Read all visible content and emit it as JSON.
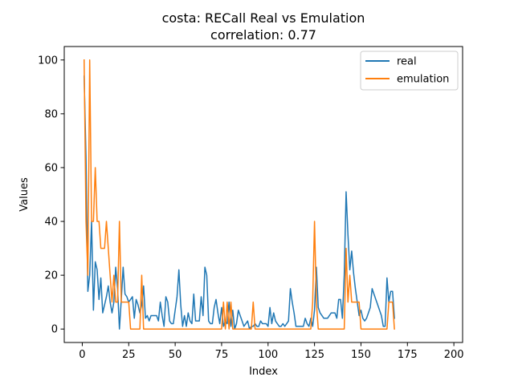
{
  "chart_data": {
    "type": "line",
    "title_line1": "costa: RECall Real vs Emulation",
    "title_line2": "correlation: 0.77",
    "xlabel": "Index",
    "ylabel": "Values",
    "xlim": [
      -9.7,
      204.7
    ],
    "ylim": [
      -5,
      105
    ],
    "xticks": [
      0,
      25,
      50,
      75,
      100,
      125,
      150,
      175,
      200
    ],
    "yticks": [
      0,
      20,
      40,
      60,
      80,
      100
    ],
    "legend_position": "top-right",
    "series": [
      {
        "name": "real",
        "color": "#1f77b4",
        "points": [
          [
            1,
            94
          ],
          [
            2,
            64
          ],
          [
            3,
            14
          ],
          [
            4,
            20
          ],
          [
            5,
            40
          ],
          [
            6,
            7
          ],
          [
            7,
            25
          ],
          [
            8,
            22
          ],
          [
            9,
            11
          ],
          [
            10,
            19
          ],
          [
            11,
            6
          ],
          [
            12,
            9
          ],
          [
            13,
            12
          ],
          [
            14,
            16
          ],
          [
            15,
            10
          ],
          [
            16,
            6
          ],
          [
            17,
            10
          ],
          [
            18,
            23
          ],
          [
            19,
            15
          ],
          [
            20,
            0
          ],
          [
            21,
            11
          ],
          [
            22,
            23
          ],
          [
            23,
            13
          ],
          [
            24,
            12
          ],
          [
            25,
            10
          ],
          [
            26,
            11
          ],
          [
            27,
            12
          ],
          [
            28,
            4
          ],
          [
            29,
            11
          ],
          [
            30,
            9
          ],
          [
            31,
            6
          ],
          [
            32,
            9
          ],
          [
            33,
            16
          ],
          [
            34,
            4
          ],
          [
            35,
            5
          ],
          [
            36,
            3
          ],
          [
            37,
            5
          ],
          [
            38,
            5
          ],
          [
            39,
            5
          ],
          [
            40,
            5
          ],
          [
            41,
            3
          ],
          [
            42,
            10
          ],
          [
            43,
            5
          ],
          [
            44,
            1
          ],
          [
            45,
            12
          ],
          [
            46,
            10
          ],
          [
            47,
            3
          ],
          [
            48,
            2
          ],
          [
            49,
            2
          ],
          [
            50,
            7
          ],
          [
            51,
            12
          ],
          [
            52,
            22
          ],
          [
            53,
            9
          ],
          [
            54,
            1
          ],
          [
            55,
            5
          ],
          [
            56,
            1
          ],
          [
            57,
            6
          ],
          [
            58,
            3
          ],
          [
            59,
            2
          ],
          [
            60,
            13
          ],
          [
            61,
            3
          ],
          [
            62,
            3
          ],
          [
            63,
            3
          ],
          [
            64,
            12
          ],
          [
            65,
            5
          ],
          [
            66,
            23
          ],
          [
            67,
            20
          ],
          [
            68,
            3
          ],
          [
            69,
            2
          ],
          [
            70,
            2
          ],
          [
            71,
            8
          ],
          [
            72,
            11
          ],
          [
            73,
            6
          ],
          [
            74,
            2
          ],
          [
            75,
            8
          ],
          [
            76,
            1
          ],
          [
            77,
            3
          ],
          [
            78,
            2
          ],
          [
            79,
            10
          ],
          [
            80,
            1
          ],
          [
            81,
            7
          ],
          [
            82,
            0
          ],
          [
            83,
            2
          ],
          [
            84,
            7
          ],
          [
            85,
            5
          ],
          [
            86,
            3
          ],
          [
            87,
            1
          ],
          [
            88,
            2
          ],
          [
            89,
            3
          ],
          [
            90,
            0
          ],
          [
            91,
            1
          ],
          [
            92,
            1
          ],
          [
            93,
            2
          ],
          [
            94,
            1
          ],
          [
            95,
            1
          ],
          [
            96,
            3
          ],
          [
            97,
            2
          ],
          [
            98,
            2
          ],
          [
            99,
            2
          ],
          [
            100,
            1
          ],
          [
            101,
            8
          ],
          [
            102,
            2
          ],
          [
            103,
            6
          ],
          [
            104,
            3
          ],
          [
            105,
            2
          ],
          [
            106,
            1
          ],
          [
            107,
            1
          ],
          [
            108,
            2
          ],
          [
            109,
            1
          ],
          [
            110,
            2
          ],
          [
            111,
            3
          ],
          [
            112,
            15
          ],
          [
            113,
            10
          ],
          [
            114,
            6
          ],
          [
            115,
            1
          ],
          [
            116,
            1
          ],
          [
            117,
            1
          ],
          [
            118,
            1
          ],
          [
            119,
            1
          ],
          [
            120,
            4
          ],
          [
            121,
            2
          ],
          [
            122,
            1
          ],
          [
            123,
            4
          ],
          [
            124,
            1
          ],
          [
            125,
            7
          ],
          [
            126,
            23
          ],
          [
            127,
            8
          ],
          [
            128,
            6
          ],
          [
            129,
            5
          ],
          [
            130,
            4
          ],
          [
            131,
            4
          ],
          [
            132,
            4
          ],
          [
            133,
            5
          ],
          [
            134,
            6
          ],
          [
            135,
            6
          ],
          [
            136,
            6
          ],
          [
            137,
            4
          ],
          [
            138,
            11
          ],
          [
            139,
            11
          ],
          [
            140,
            4
          ],
          [
            141,
            20
          ],
          [
            142,
            51
          ],
          [
            143,
            35
          ],
          [
            144,
            22
          ],
          [
            145,
            29
          ],
          [
            146,
            21
          ],
          [
            147,
            15
          ],
          [
            148,
            10
          ],
          [
            149,
            5
          ],
          [
            150,
            7
          ],
          [
            151,
            4
          ],
          [
            152,
            3
          ],
          [
            153,
            4
          ],
          [
            154,
            6
          ],
          [
            155,
            8
          ],
          [
            156,
            15
          ],
          [
            157,
            13
          ],
          [
            158,
            11
          ],
          [
            159,
            9
          ],
          [
            160,
            7
          ],
          [
            161,
            5
          ],
          [
            162,
            1
          ],
          [
            163,
            1
          ],
          [
            164,
            19
          ],
          [
            165,
            10
          ],
          [
            166,
            14
          ],
          [
            167,
            14
          ],
          [
            168,
            4
          ]
        ]
      },
      {
        "name": "emulation",
        "color": "#ff7f0e",
        "points": [
          [
            1,
            100
          ],
          [
            2,
            40
          ],
          [
            3,
            20
          ],
          [
            4,
            100
          ],
          [
            5,
            40
          ],
          [
            6,
            40
          ],
          [
            7,
            60
          ],
          [
            8,
            40
          ],
          [
            9,
            40
          ],
          [
            10,
            30
          ],
          [
            11,
            30
          ],
          [
            12,
            30
          ],
          [
            13,
            40
          ],
          [
            14,
            30
          ],
          [
            15,
            20
          ],
          [
            16,
            10
          ],
          [
            17,
            20
          ],
          [
            18,
            10
          ],
          [
            19,
            10
          ],
          [
            20,
            40
          ],
          [
            21,
            10
          ],
          [
            22,
            10
          ],
          [
            23,
            10
          ],
          [
            24,
            10
          ],
          [
            25,
            10
          ],
          [
            26,
            0
          ],
          [
            27,
            0
          ],
          [
            28,
            0
          ],
          [
            29,
            0
          ],
          [
            30,
            0
          ],
          [
            31,
            0
          ],
          [
            32,
            20
          ],
          [
            33,
            0
          ],
          [
            34,
            0
          ],
          [
            35,
            0
          ],
          [
            36,
            0
          ],
          [
            37,
            0
          ],
          [
            38,
            0
          ],
          [
            39,
            0
          ],
          [
            40,
            0
          ],
          [
            41,
            0
          ],
          [
            42,
            0
          ],
          [
            43,
            0
          ],
          [
            44,
            0
          ],
          [
            45,
            0
          ],
          [
            46,
            0
          ],
          [
            47,
            0
          ],
          [
            48,
            0
          ],
          [
            49,
            0
          ],
          [
            50,
            0
          ],
          [
            51,
            0
          ],
          [
            52,
            0
          ],
          [
            53,
            0
          ],
          [
            54,
            0
          ],
          [
            55,
            0
          ],
          [
            56,
            0
          ],
          [
            57,
            0
          ],
          [
            58,
            0
          ],
          [
            59,
            0
          ],
          [
            60,
            0
          ],
          [
            61,
            0
          ],
          [
            62,
            0
          ],
          [
            63,
            0
          ],
          [
            64,
            0
          ],
          [
            65,
            0
          ],
          [
            66,
            0
          ],
          [
            67,
            0
          ],
          [
            68,
            0
          ],
          [
            69,
            0
          ],
          [
            70,
            0
          ],
          [
            71,
            0
          ],
          [
            72,
            0
          ],
          [
            73,
            0
          ],
          [
            74,
            0
          ],
          [
            75,
            0
          ],
          [
            76,
            10
          ],
          [
            77,
            0
          ],
          [
            78,
            10
          ],
          [
            79,
            0
          ],
          [
            80,
            10
          ],
          [
            81,
            0
          ],
          [
            82,
            0
          ],
          [
            83,
            0
          ],
          [
            84,
            0
          ],
          [
            85,
            0
          ],
          [
            86,
            0
          ],
          [
            87,
            0
          ],
          [
            88,
            0
          ],
          [
            89,
            0
          ],
          [
            90,
            0
          ],
          [
            91,
            0
          ],
          [
            92,
            10
          ],
          [
            93,
            0
          ],
          [
            94,
            0
          ],
          [
            95,
            0
          ],
          [
            96,
            0
          ],
          [
            97,
            0
          ],
          [
            98,
            0
          ],
          [
            99,
            0
          ],
          [
            100,
            0
          ],
          [
            101,
            0
          ],
          [
            102,
            0
          ],
          [
            103,
            0
          ],
          [
            104,
            0
          ],
          [
            105,
            0
          ],
          [
            106,
            0
          ],
          [
            107,
            0
          ],
          [
            108,
            0
          ],
          [
            109,
            0
          ],
          [
            110,
            0
          ],
          [
            111,
            0
          ],
          [
            112,
            0
          ],
          [
            113,
            0
          ],
          [
            114,
            0
          ],
          [
            115,
            0
          ],
          [
            116,
            0
          ],
          [
            117,
            0
          ],
          [
            118,
            0
          ],
          [
            119,
            0
          ],
          [
            120,
            0
          ],
          [
            121,
            0
          ],
          [
            122,
            0
          ],
          [
            123,
            0
          ],
          [
            124,
            10
          ],
          [
            125,
            40
          ],
          [
            126,
            10
          ],
          [
            127,
            0
          ],
          [
            128,
            0
          ],
          [
            129,
            0
          ],
          [
            130,
            0
          ],
          [
            131,
            0
          ],
          [
            132,
            0
          ],
          [
            133,
            0
          ],
          [
            134,
            0
          ],
          [
            135,
            0
          ],
          [
            136,
            0
          ],
          [
            137,
            0
          ],
          [
            138,
            0
          ],
          [
            139,
            0
          ],
          [
            140,
            0
          ],
          [
            141,
            0
          ],
          [
            142,
            30
          ],
          [
            143,
            10
          ],
          [
            144,
            20
          ],
          [
            145,
            10
          ],
          [
            146,
            10
          ],
          [
            147,
            10
          ],
          [
            148,
            10
          ],
          [
            149,
            10
          ],
          [
            150,
            0
          ],
          [
            151,
            0
          ],
          [
            152,
            0
          ],
          [
            153,
            0
          ],
          [
            154,
            0
          ],
          [
            155,
            0
          ],
          [
            156,
            0
          ],
          [
            157,
            0
          ],
          [
            158,
            0
          ],
          [
            159,
            0
          ],
          [
            160,
            0
          ],
          [
            161,
            0
          ],
          [
            162,
            0
          ],
          [
            163,
            0
          ],
          [
            164,
            0
          ],
          [
            165,
            10
          ],
          [
            166,
            10
          ],
          [
            167,
            10
          ],
          [
            168,
            0
          ]
        ]
      }
    ]
  }
}
